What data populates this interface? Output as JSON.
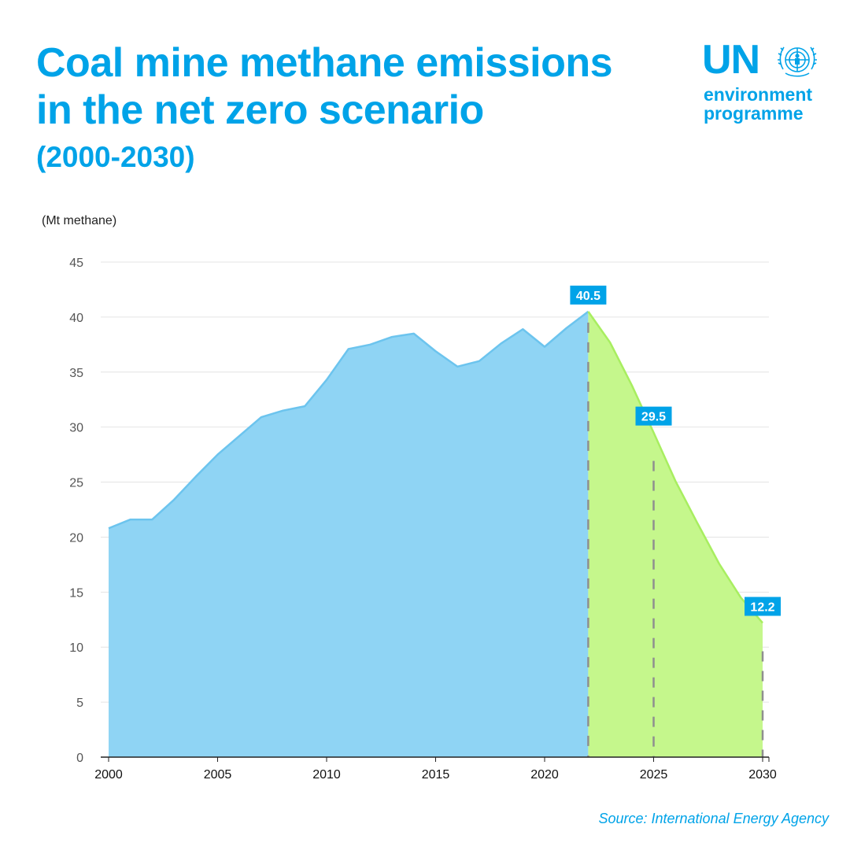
{
  "header": {
    "title_line1": "Coal mine methane emissions",
    "title_line2": "in the net zero scenario",
    "subtitle": "(2000-2030)"
  },
  "logo": {
    "un": "UN",
    "line1": "environment",
    "line2": "programme",
    "icon": "un-emblem-icon"
  },
  "chart_data": {
    "type": "area",
    "title": "Coal mine methane emissions in the net zero scenario",
    "subtitle": "(2000-2030)",
    "ylabel": "(Mt methane)",
    "xlabel": "",
    "xlim": [
      2000,
      2030
    ],
    "ylim": [
      0,
      45
    ],
    "x_ticks": [
      2000,
      2005,
      2010,
      2015,
      2020,
      2025,
      2030
    ],
    "y_ticks": [
      0,
      5,
      10,
      15,
      20,
      25,
      30,
      35,
      40,
      45
    ],
    "grid": true,
    "series": [
      {
        "name": "",
        "color": "#8fd4f4",
        "line_color": "#6cc4ee",
        "x": [
          2000,
          2001,
          2002,
          2003,
          2004,
          2005,
          2006,
          2007,
          2008,
          2009,
          2010,
          2011,
          2012,
          2013,
          2014,
          2015,
          2016,
          2017,
          2018,
          2019,
          2020,
          2021,
          2022
        ],
        "values": [
          20.8,
          21.6,
          21.6,
          23.4,
          25.5,
          27.5,
          29.2,
          30.9,
          31.5,
          31.9,
          34.3,
          37.1,
          37.5,
          38.2,
          38.5,
          36.9,
          35.5,
          36.0,
          37.6,
          38.9,
          37.3,
          39.0,
          40.5
        ]
      },
      {
        "name": "",
        "color": "#c5f78c",
        "line_color": "#a8ee60",
        "x": [
          2022,
          2023,
          2024,
          2025,
          2026,
          2027,
          2028,
          2029,
          2030
        ],
        "values": [
          40.5,
          37.7,
          33.8,
          29.5,
          25.1,
          21.3,
          17.6,
          14.5,
          12.2
        ]
      }
    ],
    "markers": [
      {
        "x": 2022,
        "value": 40.5,
        "label": "40.5"
      },
      {
        "x": 2025,
        "value": 29.5,
        "label": "29.5"
      },
      {
        "x": 2030,
        "value": 12.2,
        "label": "12.2"
      }
    ],
    "label_color": "#00a3e8",
    "source": "Source: International Energy Agency"
  }
}
